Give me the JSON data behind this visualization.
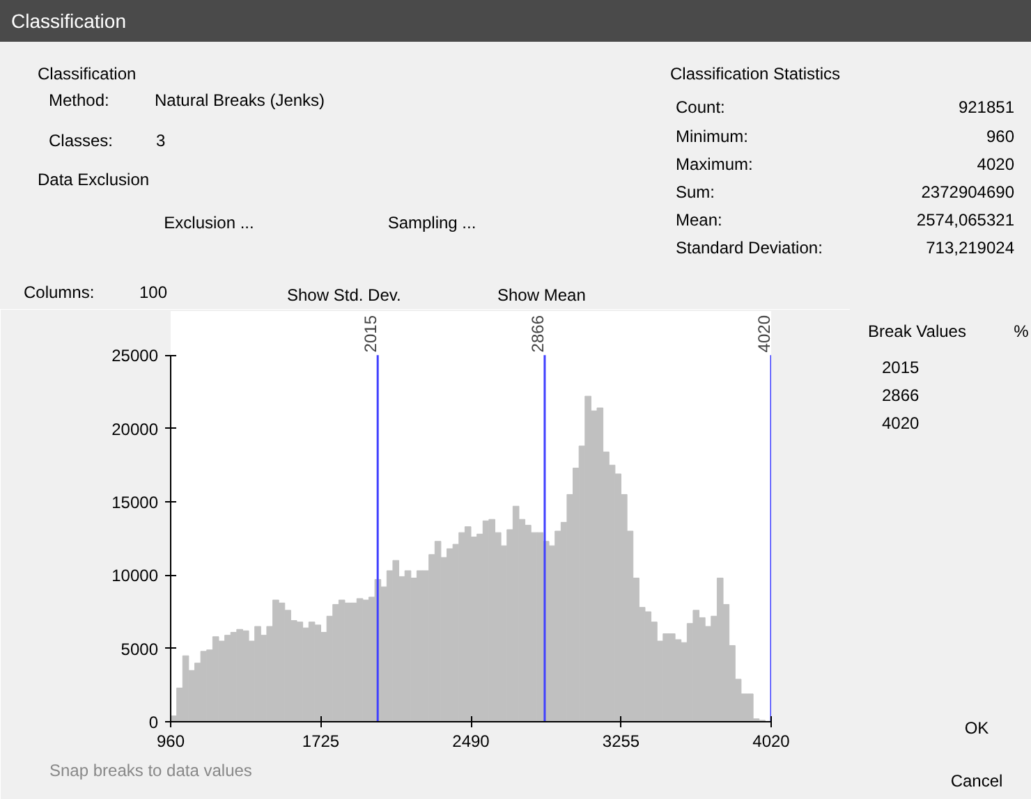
{
  "chart_data": {
    "type": "histogram",
    "title": "Classification",
    "bins": [
      960,
      990.6,
      1021.2,
      1051.8,
      1082.4,
      1113,
      1143.6,
      1174.2,
      1204.8,
      1235.4,
      1266,
      1296.6,
      1327.2,
      1357.8,
      1388.4,
      1419,
      1449.6,
      1480.2,
      1510.8,
      1541.4,
      1572,
      1602.6,
      1633.2,
      1663.8,
      1694.4,
      1725,
      1755.6,
      1786.2,
      1816.8,
      1847.4,
      1878,
      1908.6,
      1939.2,
      1969.8,
      2000.4,
      2031,
      2061.6,
      2092.2,
      2122.8,
      2153.4,
      2184,
      2214.6,
      2245.2,
      2275.8,
      2306.4,
      2337,
      2367.6,
      2398.2,
      2428.8,
      2459.4,
      2490,
      2520.6,
      2551.2,
      2581.8,
      2612.4,
      2643,
      2673.6,
      2704.2,
      2734.8,
      2765.4,
      2796,
      2826.6,
      2857.2,
      2887.8,
      2918.4,
      2949,
      2979.6,
      3010.2,
      3040.8,
      3071.4,
      3102,
      3132.6,
      3163.2,
      3193.8,
      3224.4,
      3255,
      3285.6,
      3316.2,
      3346.8,
      3377.4,
      3408,
      3438.6,
      3469.2,
      3499.8,
      3530.4,
      3561,
      3591.6,
      3622.2,
      3652.8,
      3683.4,
      3714,
      3744.6,
      3775.2,
      3805.8,
      3836.4,
      3867,
      3897.6,
      3928.2,
      3958.8,
      3989.4,
      4020
    ],
    "values": [
      400,
      2300,
      4500,
      3500,
      4000,
      4800,
      4900,
      5800,
      5500,
      5900,
      6100,
      6300,
      6200,
      5500,
      6500,
      5900,
      6500,
      8300,
      8100,
      7600,
      6900,
      6800,
      6400,
      6800,
      6600,
      6100,
      7200,
      8000,
      8300,
      8100,
      8100,
      8400,
      8300,
      8500,
      9700,
      9200,
      10300,
      11000,
      9900,
      10300,
      9800,
      10300,
      10300,
      11400,
      12300,
      11200,
      11800,
      12100,
      12900,
      13300,
      12600,
      12800,
      13700,
      13800,
      12900,
      12000,
      13100,
      14700,
      13800,
      13400,
      12900,
      12900,
      12300,
      12000,
      13000,
      13600,
      15500,
      17300,
      18800,
      22200,
      21200,
      21400,
      18400,
      17500,
      16900,
      15500,
      13000,
      9800,
      7800,
      7500,
      6800,
      5500,
      6000,
      6000,
      5600,
      5400,
      6700,
      7600,
      7100,
      6500,
      7200,
      9800,
      8000,
      5200,
      2900,
      1900,
      1900,
      200,
      100,
      0
    ],
    "color": "#c0c0c0",
    "xlim": [
      960,
      4020
    ],
    "xticks": [
      960,
      1725,
      2490,
      3255,
      4020
    ],
    "ylim": [
      0,
      28000
    ],
    "yticks": [
      0,
      5000,
      10000,
      15000,
      20000,
      25000
    ],
    "ref_lines": [
      {
        "axis": "x",
        "value": 2015,
        "label": "2015",
        "color": "#4040ff"
      },
      {
        "axis": "x",
        "value": 2866,
        "label": "2866",
        "color": "#4040ff"
      },
      {
        "axis": "x",
        "value": 4020,
        "label": "4020",
        "color": "#4040ff"
      }
    ],
    "annotations": [
      "Classification",
      "Method:",
      "Natural Breaks (Jenks)",
      "Classes:",
      "3",
      "Data Exclusion",
      "Exclusion ...",
      "Sampling ...",
      "Columns:",
      "100",
      "Show Std. Dev.",
      "Show Mean",
      "Classification Statistics",
      "Count:",
      "921851",
      "Minimum:",
      "960",
      "Maximum:",
      "4020",
      "Sum:",
      "2372904690",
      "Mean:",
      "2574,065321",
      "Standard Deviation:",
      "713,219024",
      "Break Values",
      "%",
      "2015",
      "2866",
      "4020",
      "OK",
      "Cancel",
      "Snap breaks to data values"
    ]
  }
}
